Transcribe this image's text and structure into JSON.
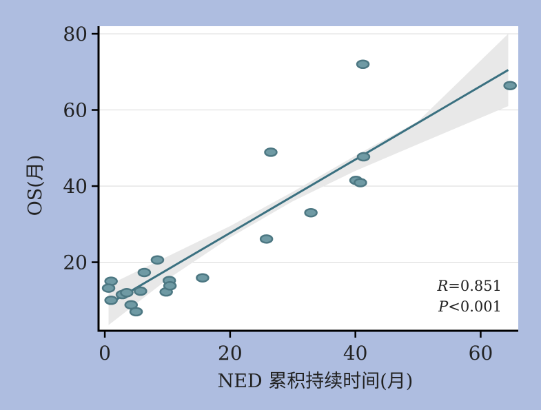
{
  "colors": {
    "page_background": "#aebde0",
    "plot_background": "#ffffff",
    "gridline": "#dddddd",
    "confidence_band": "#e8e8e8",
    "fit_line": "#3a7080",
    "point_fill": "#6f9aa4",
    "point_stroke": "#4c7782",
    "axis": "#000000"
  },
  "chart_data": {
    "type": "scatter",
    "xlabel": "NED 累积持续时间(月)",
    "ylabel": "OS(月)",
    "xlim": [
      -1,
      66
    ],
    "ylim": [
      2,
      82
    ],
    "x_ticks": [
      0,
      20,
      40,
      60
    ],
    "y_ticks": [
      20,
      40,
      60,
      80
    ],
    "grid": "horizontal",
    "points": [
      {
        "x": 1,
        "y": 15
      },
      {
        "x": 0.6,
        "y": 13.2
      },
      {
        "x": 1,
        "y": 10
      },
      {
        "x": 2.8,
        "y": 11.5
      },
      {
        "x": 3.5,
        "y": 12
      },
      {
        "x": 4.2,
        "y": 8.8
      },
      {
        "x": 5,
        "y": 7
      },
      {
        "x": 5.7,
        "y": 12.4
      },
      {
        "x": 6.3,
        "y": 17.3
      },
      {
        "x": 8.4,
        "y": 20.6
      },
      {
        "x": 9.8,
        "y": 12.2
      },
      {
        "x": 10.3,
        "y": 15.2
      },
      {
        "x": 10.4,
        "y": 13.8
      },
      {
        "x": 15.6,
        "y": 15.9
      },
      {
        "x": 25.8,
        "y": 26.1
      },
      {
        "x": 26.5,
        "y": 48.9
      },
      {
        "x": 32.9,
        "y": 33
      },
      {
        "x": 40.1,
        "y": 41.5
      },
      {
        "x": 40.8,
        "y": 40.9
      },
      {
        "x": 41.2,
        "y": 72
      },
      {
        "x": 41.3,
        "y": 47.7
      },
      {
        "x": 64.7,
        "y": 66.4
      }
    ],
    "fit_line": {
      "x": [
        0.6,
        64.4
      ],
      "y": [
        9,
        70.5
      ]
    },
    "confidence_band": {
      "x": [
        0.6,
        10,
        20,
        30,
        40,
        50,
        64.4
      ],
      "lower": [
        3.5,
        15.5,
        26.5,
        36,
        44,
        51,
        61
      ],
      "upper": [
        14,
        21.5,
        29.5,
        38.5,
        48,
        57,
        80
      ]
    },
    "stats": [
      {
        "symbol": "R",
        "text": "=0.851"
      },
      {
        "symbol": "P",
        "text": "<0.001"
      }
    ]
  }
}
